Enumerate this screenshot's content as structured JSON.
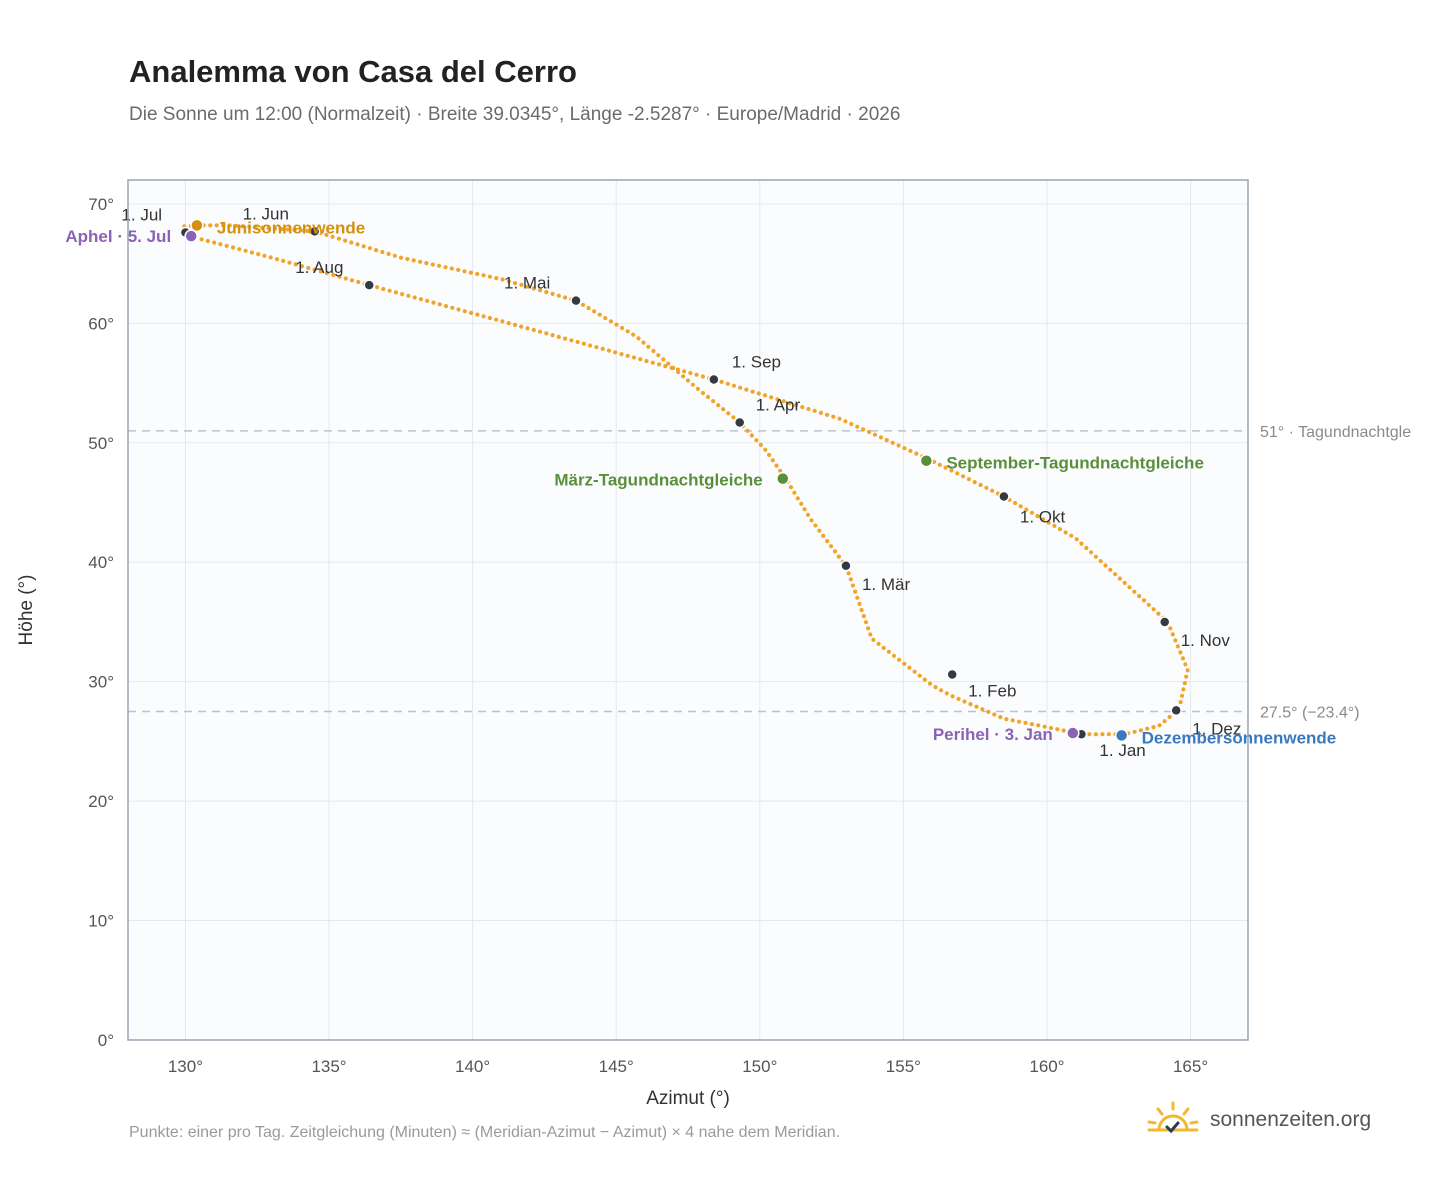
{
  "header": {
    "title": "Analemma von Casa del Cerro",
    "subtitle": "Die Sonne um 12:00 (Normalzeit) · Breite 39.0345°, Länge -2.5287° · Europe/Madrid · 2026"
  },
  "footer": {
    "note": "Punkte: einer pro Tag. Zeitgleichung (Minuten) ≈ (Meridian-Azimut − Azimut) × 4 nahe dem Meridian.",
    "brand": "sonnenzeiten.org",
    "brand_icon": "sun-check-icon"
  },
  "colors": {
    "path": "#f2a428",
    "month": "#333a44",
    "solstice_june": "#d4900f",
    "solstice_dec": "#3a78bf",
    "equinox": "#5a8f3a",
    "apsis": "#8a63b4",
    "refline": "#b9c3d0",
    "plot_bg": "#fbfcfe",
    "grid": "#e4e8ee",
    "frame": "#99a3b0"
  },
  "chart_data": {
    "type": "scatter",
    "xlabel": "Azimut (°)",
    "ylabel": "Höhe (°)",
    "xlim": [
      128,
      167
    ],
    "ylim": [
      0,
      70
    ],
    "x_ticks": [
      130,
      135,
      140,
      145,
      150,
      155,
      160,
      165
    ],
    "y_ticks": [
      0,
      10,
      20,
      30,
      40,
      50,
      60,
      70
    ],
    "x_tick_labels": [
      "130°",
      "135°",
      "140°",
      "145°",
      "150°",
      "155°",
      "160°",
      "165°"
    ],
    "y_tick_labels": [
      "0°",
      "10°",
      "20°",
      "30°",
      "40°",
      "50°",
      "60°",
      "70°"
    ],
    "grid": true,
    "reference_lines": [
      {
        "y": 51.0,
        "label": "51° · Tagundnachtgle"
      },
      {
        "y": 27.5,
        "label": "27.5° (−23.4°)"
      }
    ],
    "path_points": [
      [
        161.25,
        25.6
      ],
      [
        158.5,
        26.9
      ],
      [
        156.6,
        28.9
      ],
      [
        156.0,
        29.7
      ],
      [
        153.9,
        33.6
      ],
      [
        153.0,
        39.7
      ],
      [
        151.8,
        43.5
      ],
      [
        150.9,
        47.0
      ],
      [
        150.2,
        49.4
      ],
      [
        149.3,
        51.7
      ],
      [
        147.8,
        54.6
      ],
      [
        145.7,
        58.9
      ],
      [
        143.6,
        61.9
      ],
      [
        141.0,
        63.7
      ],
      [
        137.5,
        65.5
      ],
      [
        134.5,
        67.7
      ],
      [
        131.5,
        68.2
      ],
      [
        130.4,
        68.2
      ],
      [
        129.9,
        68.1
      ],
      [
        130.0,
        67.6
      ],
      [
        130.3,
        67.2
      ],
      [
        133.0,
        65.5
      ],
      [
        136.4,
        63.2
      ],
      [
        142.5,
        59.2
      ],
      [
        148.4,
        55.3
      ],
      [
        152.8,
        52.0
      ],
      [
        155.9,
        48.6
      ],
      [
        158.5,
        45.5
      ],
      [
        161.0,
        42.0
      ],
      [
        164.2,
        35.0
      ],
      [
        164.9,
        31.0
      ],
      [
        164.6,
        27.7
      ],
      [
        163.9,
        26.3
      ],
      [
        162.7,
        25.6
      ],
      [
        161.25,
        25.6
      ]
    ],
    "months": [
      {
        "label": "1. Jan",
        "x": 161.2,
        "y": 25.6
      },
      {
        "label": "1. Feb",
        "x": 156.7,
        "y": 30.6
      },
      {
        "label": "1. Mär",
        "x": 153.0,
        "y": 39.7
      },
      {
        "label": "1. Apr",
        "x": 149.3,
        "y": 51.7
      },
      {
        "label": "1. Mai",
        "x": 143.6,
        "y": 61.9
      },
      {
        "label": "1. Jun",
        "x": 134.5,
        "y": 67.7
      },
      {
        "label": "1. Jul",
        "x": 130.0,
        "y": 67.6
      },
      {
        "label": "1. Aug",
        "x": 136.4,
        "y": 63.2
      },
      {
        "label": "1. Sep",
        "x": 148.4,
        "y": 55.3
      },
      {
        "label": "1. Okt",
        "x": 158.5,
        "y": 45.5
      },
      {
        "label": "1. Nov",
        "x": 164.1,
        "y": 35.0
      },
      {
        "label": "1. Dez",
        "x": 164.5,
        "y": 27.6
      }
    ],
    "events": [
      {
        "label": "Junisonnenwende",
        "x": 130.4,
        "y": 68.2,
        "color": "#d4900f"
      },
      {
        "label": "Aphel · 5. Jul",
        "x": 130.2,
        "y": 67.3,
        "color": "#8a63b4"
      },
      {
        "label": "März-Tagundnachtgleiche",
        "x": 150.8,
        "y": 47.0,
        "color": "#5a8f3a"
      },
      {
        "label": "September-Tagundnachtgleiche",
        "x": 155.8,
        "y": 48.5,
        "color": "#5a8f3a"
      },
      {
        "label": "Perihel · 3. Jan",
        "x": 160.9,
        "y": 25.7,
        "color": "#8a63b4"
      },
      {
        "label": "Dezembersonnenwende",
        "x": 162.6,
        "y": 25.5,
        "color": "#3a78bf"
      }
    ]
  }
}
